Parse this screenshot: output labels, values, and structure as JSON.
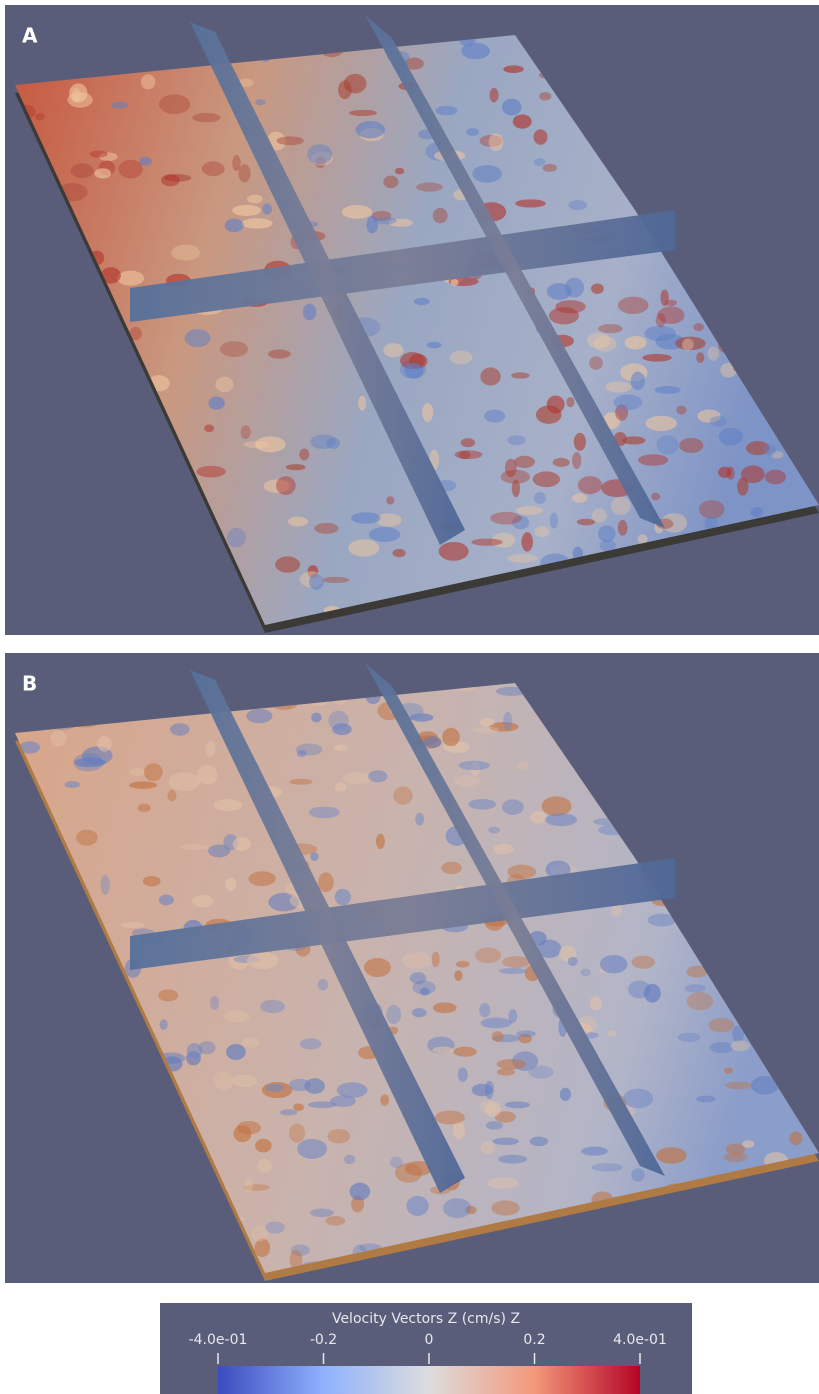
{
  "panels": [
    {
      "label": "A"
    },
    {
      "label": "B"
    }
  ],
  "colorbar": {
    "title": "Velocity Vectors Z (cm/s) Z",
    "range": [
      -0.4,
      0.4
    ],
    "ticks": [
      {
        "value": -0.4,
        "label": "-4.0e-01"
      },
      -0.2,
      0,
      0.2,
      {
        "value": 0.4,
        "label": "4.0e-01"
      }
    ]
  }
}
